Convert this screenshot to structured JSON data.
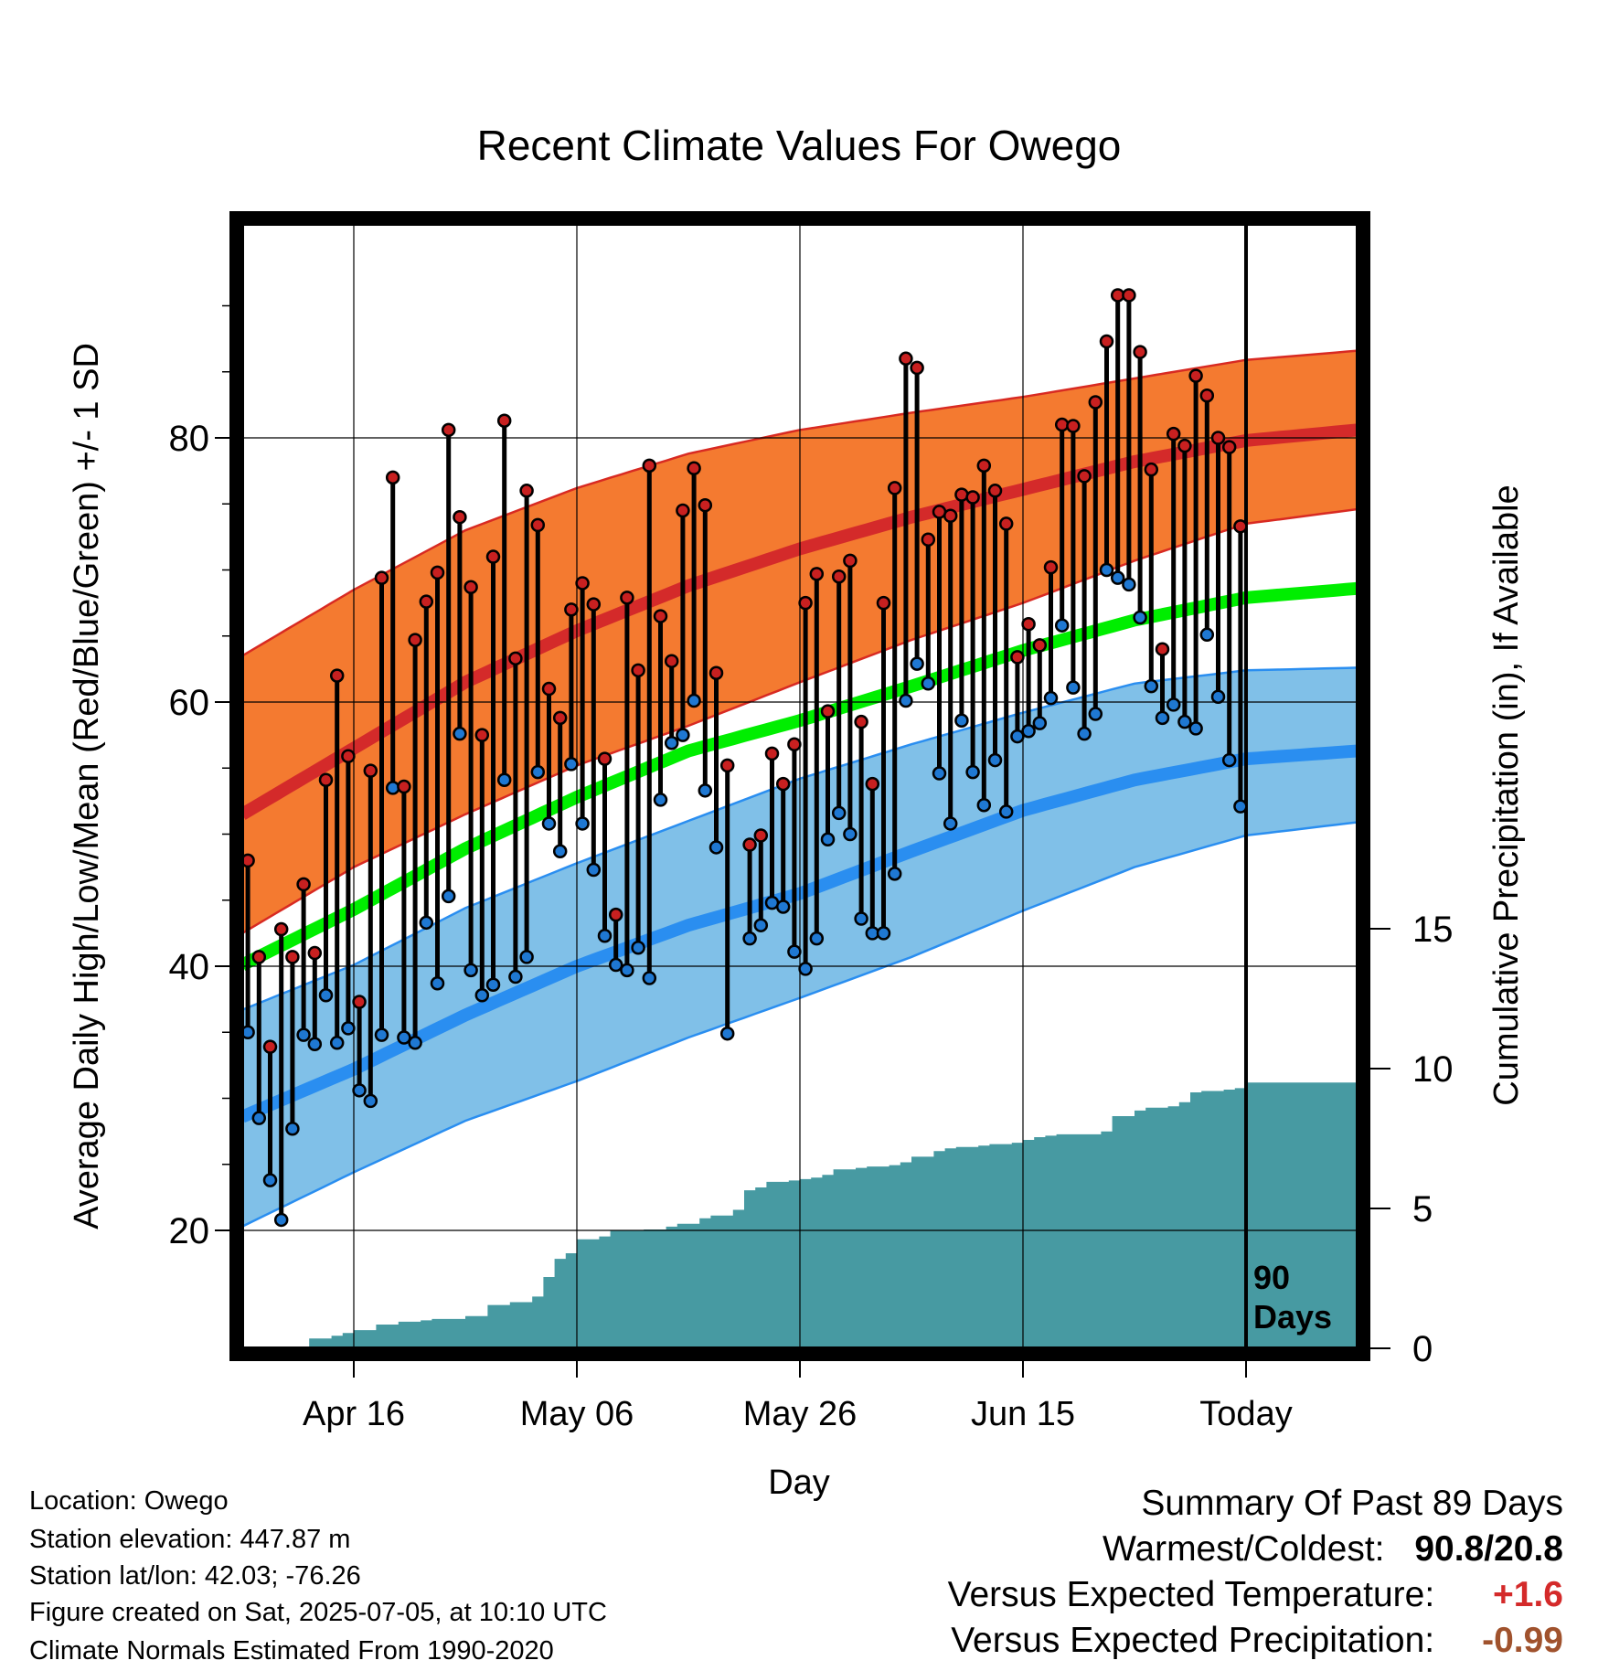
{
  "chart_data": {
    "type": "line",
    "title": "Recent Climate Values For Owego",
    "xlabel": "Day",
    "ylabel": "Average Daily High/Low/Mean (Red/Blue/Green) +/- 1 SD",
    "y2label": "Cumulative Precipitation (in), If Available",
    "ylim": [
      12,
      96
    ],
    "y2lim": [
      0,
      40.1
    ],
    "yticks": [
      20,
      40,
      60,
      80
    ],
    "y2ticks": [
      0,
      5,
      10,
      15
    ],
    "xlim": [
      0,
      100
    ],
    "xticks": [
      {
        "day": 10,
        "label": "Apr 16"
      },
      {
        "day": 30,
        "label": "May 06"
      },
      {
        "day": 50,
        "label": "May 26"
      },
      {
        "day": 70,
        "label": "Jun 15"
      },
      {
        "day": 90,
        "label": "Today"
      }
    ],
    "today_marker": {
      "day": 90,
      "label_line1": "90",
      "label_line2": "Days"
    },
    "grid": true,
    "normal_high": {
      "x": [
        0,
        10,
        20,
        30,
        40,
        50,
        60,
        70,
        80,
        90,
        100
      ],
      "mean": [
        51.5,
        56.5,
        61.5,
        65.4,
        68.8,
        71.6,
        74.0,
        76.1,
        78.2,
        79.8,
        80.6
      ],
      "upper": [
        63.5,
        68.5,
        73.0,
        76.2,
        78.8,
        80.6,
        81.9,
        83.1,
        84.5,
        85.9,
        86.6
      ],
      "lower": [
        42.5,
        47.5,
        51.5,
        55.2,
        58.2,
        61.5,
        64.7,
        67.5,
        70.7,
        73.5,
        74.6
      ]
    },
    "normal_low": {
      "x": [
        0,
        10,
        20,
        30,
        40,
        50,
        60,
        70,
        80,
        90,
        100
      ],
      "mean": [
        28.6,
        32.2,
        36.3,
        40.0,
        43.1,
        45.5,
        48.7,
        51.8,
        54.1,
        55.7,
        56.3
      ],
      "upper": [
        36.7,
        40.1,
        44.4,
        47.8,
        51.0,
        54.2,
        56.8,
        59.2,
        61.4,
        62.4,
        62.6
      ],
      "lower": [
        20.3,
        24.4,
        28.3,
        31.3,
        34.6,
        37.6,
        40.7,
        44.2,
        47.5,
        49.9,
        50.9
      ]
    },
    "normal_mean": {
      "x": [
        0,
        10,
        20,
        30,
        40,
        50,
        60,
        70,
        80,
        90,
        100
      ],
      "values": [
        40.1,
        44.3,
        48.9,
        52.8,
        56.3,
        58.6,
        61.2,
        63.9,
        66.2,
        67.9,
        68.6
      ]
    },
    "daily_high": [
      48.0,
      40.7,
      33.9,
      42.8,
      40.7,
      46.2,
      41.0,
      54.1,
      62.0,
      55.9,
      37.3,
      54.8,
      69.4,
      77.0,
      53.6,
      64.7,
      67.6,
      69.8,
      80.6,
      74.0,
      68.7,
      57.5,
      71.0,
      81.3,
      63.3,
      76.0,
      73.4,
      61.0,
      58.8,
      67.0,
      69.0,
      67.4,
      55.7,
      43.9,
      67.9,
      62.4,
      77.9,
      66.5,
      63.1,
      74.5,
      77.7,
      74.9,
      62.2,
      55.2,
      null,
      49.2,
      49.9,
      56.1,
      53.8,
      56.8,
      67.5,
      69.7,
      59.3,
      69.5,
      70.7,
      58.5,
      53.8,
      67.5,
      76.2,
      86.0,
      85.3,
      72.3,
      74.4,
      74.1,
      75.7,
      75.5,
      77.9,
      76.0,
      73.5,
      63.4,
      65.9,
      64.3,
      70.2,
      81.0,
      80.9,
      77.1,
      82.7,
      87.3,
      90.8,
      90.8,
      86.5,
      77.6,
      64.0,
      80.3,
      79.4,
      84.7,
      83.2,
      80.0,
      79.3,
      73.3
    ],
    "daily_low": [
      35.0,
      28.5,
      23.8,
      20.8,
      27.7,
      34.8,
      34.1,
      37.8,
      34.2,
      35.3,
      30.6,
      29.8,
      34.8,
      53.5,
      34.6,
      34.2,
      43.3,
      38.7,
      45.3,
      57.6,
      39.7,
      37.8,
      38.6,
      54.1,
      39.2,
      40.7,
      54.7,
      50.8,
      48.7,
      55.3,
      50.8,
      47.3,
      42.3,
      40.1,
      39.7,
      41.4,
      39.1,
      52.6,
      56.9,
      57.5,
      60.1,
      53.3,
      49.0,
      34.9,
      null,
      42.1,
      43.1,
      44.8,
      44.5,
      41.1,
      39.8,
      42.1,
      49.6,
      51.6,
      50.0,
      43.6,
      42.5,
      42.5,
      47.0,
      60.1,
      62.9,
      61.4,
      54.6,
      50.8,
      58.6,
      54.7,
      52.2,
      55.6,
      51.7,
      57.4,
      57.8,
      58.4,
      60.3,
      65.8,
      61.1,
      57.6,
      59.1,
      70.0,
      69.4,
      68.9,
      66.4,
      61.2,
      58.8,
      59.8,
      58.5,
      58.0,
      65.1,
      60.4,
      55.6,
      52.1
    ],
    "cumulative_precipitation": {
      "x": [
        0,
        5.5,
        6,
        8,
        9,
        10,
        12,
        13,
        14,
        16,
        17,
        18,
        20,
        21,
        22,
        24,
        25,
        26,
        27,
        28,
        29,
        30,
        32,
        33,
        36,
        38,
        39,
        41,
        42,
        44,
        45,
        46,
        47,
        49,
        50,
        51,
        52,
        53,
        55,
        56,
        58,
        59,
        60,
        62,
        63,
        64,
        66,
        67,
        69,
        70,
        71,
        72,
        73,
        77,
        78,
        80,
        81,
        82,
        83,
        84,
        85,
        86,
        88,
        89,
        90,
        100
      ],
      "values": [
        0,
        0,
        0.35,
        0.45,
        0.55,
        0.65,
        0.85,
        0.85,
        0.95,
        1.0,
        1.05,
        1.05,
        1.15,
        1.15,
        1.55,
        1.65,
        1.65,
        1.85,
        2.55,
        3.2,
        3.4,
        3.9,
        4.0,
        4.2,
        4.25,
        4.35,
        4.45,
        4.65,
        4.75,
        4.95,
        5.65,
        5.75,
        5.95,
        6.0,
        6.05,
        6.1,
        6.2,
        6.4,
        6.45,
        6.5,
        6.55,
        6.65,
        6.85,
        7.05,
        7.15,
        7.2,
        7.25,
        7.3,
        7.35,
        7.45,
        7.55,
        7.6,
        7.65,
        7.75,
        8.3,
        8.5,
        8.6,
        8.6,
        8.65,
        8.8,
        9.15,
        9.2,
        9.25,
        9.3,
        9.5,
        9.5
      ]
    }
  },
  "info": {
    "location": "Location: Owego",
    "elevation": "Station elevation: 447.87 m",
    "latlon": "Station lat/lon: 42.03; -76.26",
    "created": "Figure created on Sat, 2025-07-05, at 10:10 UTC",
    "normals": "Climate Normals Estimated From 1990-2020"
  },
  "summary": {
    "heading": "Summary Of Past 89 Days",
    "warmest_coldest_label": "Warmest/Coldest:",
    "warmest_coldest_value": "90.8/20.8",
    "temp_label": "Versus Expected Temperature:",
    "temp_value": "+1.6",
    "temp_color": "#d42a2a",
    "precip_label": "Versus Expected Precipitation:",
    "precip_value": "-0.99",
    "precip_color": "#a0522d"
  },
  "colors": {
    "high_band": "#f47a30",
    "high_band_edge": "#d82a22",
    "high_mean": "#d42a2a",
    "low_band": "#80c0e8",
    "low_band_edge": "#2a8ef0",
    "low_mean": "#2a8ef0",
    "mean_line": "#00ee00",
    "precip_fill": "#479aa2",
    "high_dot": "#c82020",
    "low_dot": "#1f78d2"
  }
}
